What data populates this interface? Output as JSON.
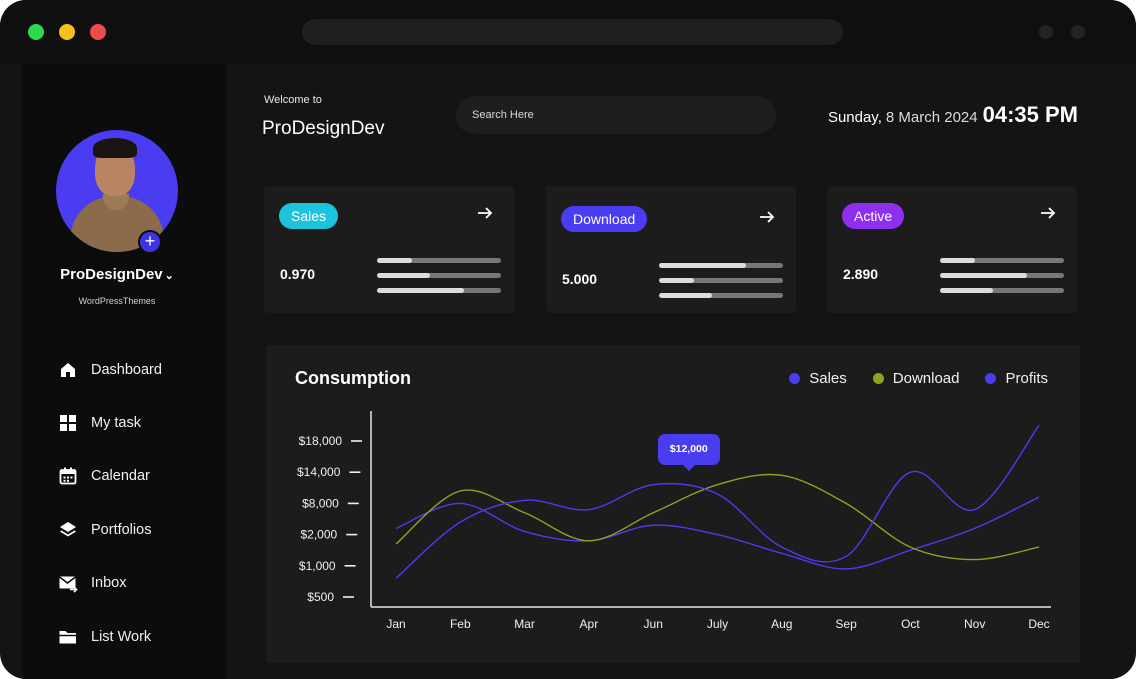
{
  "sidebar": {
    "profile": {
      "name": "ProDesignDev",
      "subtitle": "WordPressThemes"
    },
    "items": [
      {
        "label": "Dashboard",
        "icon": "home-icon"
      },
      {
        "label": "My task",
        "icon": "grid-icon"
      },
      {
        "label": "Calendar",
        "icon": "calendar-icon"
      },
      {
        "label": "Portfolios",
        "icon": "layers-icon"
      },
      {
        "label": "Inbox",
        "icon": "mail-icon"
      },
      {
        "label": "List Work",
        "icon": "folder-icon"
      }
    ]
  },
  "header": {
    "welcome": "Welcome to",
    "name": "ProDesignDev",
    "search_placeholder": "Search Here",
    "day": "Sunday,",
    "date": "8 March 2024",
    "time": "04:35 PM"
  },
  "cards": [
    {
      "label": "Sales",
      "value": "0.970",
      "color": "#1cc3dd",
      "progress": [
        0.28,
        0.43,
        0.7
      ]
    },
    {
      "label": "Download",
      "value": "5.000",
      "color": "#4a3cf0",
      "progress": [
        0.7,
        0.28,
        0.43
      ]
    },
    {
      "label": "Active",
      "value": "2.890",
      "color": "#8e2ff0",
      "progress": [
        0.28,
        0.7,
        0.43
      ]
    }
  ],
  "chart_data": {
    "type": "line",
    "title": "Consumption",
    "categories": [
      "Jan",
      "Feb",
      "Mar",
      "Apr",
      "Jun",
      "July",
      "Aug",
      "Sep",
      "Oct",
      "Nov",
      "Dec"
    ],
    "y_ticks": [
      "$18,000",
      "$14,000",
      "$8,000",
      "$2,000",
      "$1,000",
      "$500"
    ],
    "tooltip": {
      "label": "$12,000",
      "x": 4.6,
      "y": 3.8
    },
    "legend_position": "top-right",
    "grid": false,
    "series": [
      {
        "name": "Sales",
        "color": "#4a3cf0",
        "values": [
          2.2,
          3.0,
          2.1,
          1.8,
          2.3,
          2.0,
          1.4,
          0.9,
          1.5,
          2.2,
          3.2
        ]
      },
      {
        "name": "Download",
        "color": "#8fa320",
        "values": [
          1.7,
          3.4,
          2.7,
          1.8,
          2.7,
          3.6,
          3.9,
          3.0,
          1.6,
          1.2,
          1.6
        ]
      },
      {
        "name": "Profits",
        "color": "#4a3cf0",
        "values": [
          0.6,
          2.4,
          3.1,
          2.8,
          3.6,
          3.3,
          1.6,
          1.3,
          4.0,
          2.8,
          5.5
        ]
      }
    ]
  }
}
